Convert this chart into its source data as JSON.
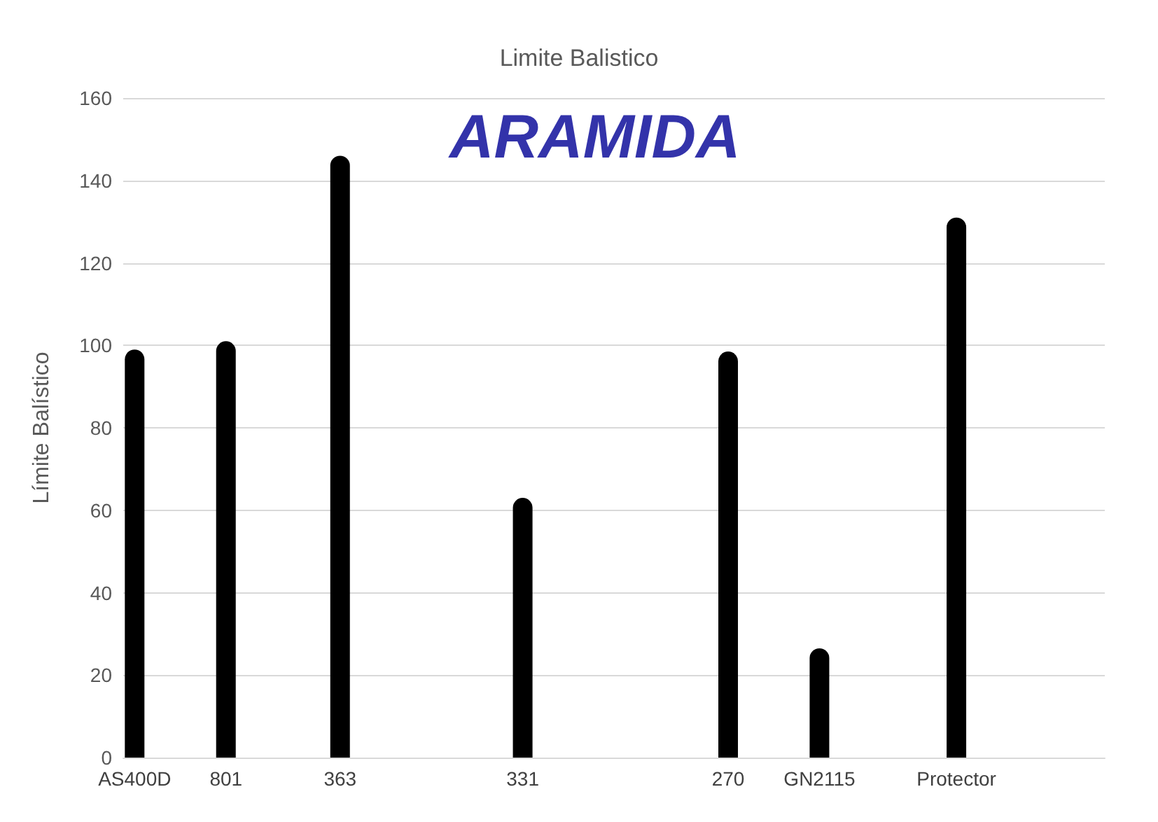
{
  "chart_data": {
    "type": "bar",
    "title": "Limite Balistico",
    "ylabel": "Límite Balístico",
    "annotations": [
      "ARAMIDA"
    ],
    "categories": [
      "AS400D",
      null,
      null,
      null,
      "801",
      null,
      null,
      null,
      null,
      "363",
      null,
      null,
      null,
      null,
      null,
      null,
      null,
      "331",
      null,
      null,
      null,
      null,
      null,
      null,
      null,
      null,
      "270",
      null,
      null,
      null,
      "GN2115",
      null,
      null,
      null,
      null,
      null,
      "Protector",
      null,
      null,
      null,
      null,
      null,
      null
    ],
    "values": [
      99,
      null,
      null,
      null,
      101,
      null,
      null,
      null,
      null,
      146,
      null,
      null,
      null,
      null,
      null,
      null,
      null,
      63,
      null,
      null,
      null,
      null,
      null,
      null,
      null,
      null,
      98.5,
      null,
      null,
      null,
      26.5,
      null,
      null,
      null,
      null,
      null,
      131,
      null,
      null,
      null,
      null,
      null,
      null
    ],
    "color": "#000000",
    "ylim": [
      0,
      160
    ],
    "yticks": [
      0,
      20,
      40,
      60,
      80,
      100,
      120,
      140,
      160
    ],
    "grid": "y"
  }
}
